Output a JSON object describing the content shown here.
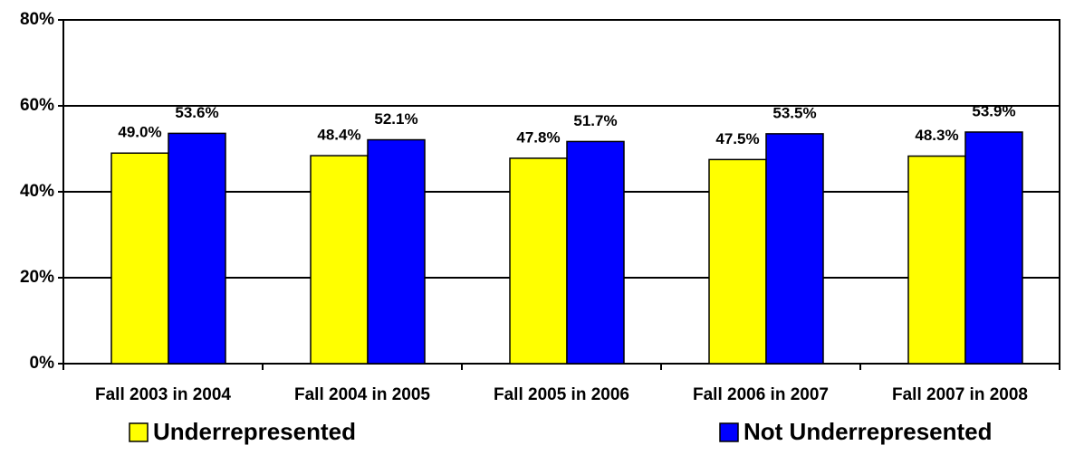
{
  "chart_data": {
    "type": "bar",
    "categories": [
      "Fall 2003 in 2004",
      "Fall 2004 in 2005",
      "Fall 2005 in 2006",
      "Fall 2006 in 2007",
      "Fall 2007 in 2008"
    ],
    "series": [
      {
        "name": "Underrepresented",
        "color": "#ffff00",
        "values": [
          49.0,
          48.4,
          47.8,
          47.5,
          48.3
        ],
        "value_labels": [
          "49.0%",
          "48.4%",
          "47.8%",
          "47.5%",
          "48.3%"
        ]
      },
      {
        "name": "Not Underrepresented",
        "color": "#0000ff",
        "values": [
          53.6,
          52.1,
          51.7,
          53.5,
          53.9
        ],
        "value_labels": [
          "53.6%",
          "52.1%",
          "51.7%",
          "53.5%",
          "53.9%"
        ]
      }
    ],
    "ylim": [
      0,
      80
    ],
    "yticks": [
      {
        "value": 0,
        "label": "0%"
      },
      {
        "value": 20,
        "label": "20%"
      },
      {
        "value": 40,
        "label": "40%"
      },
      {
        "value": 60,
        "label": "60%"
      },
      {
        "value": 80,
        "label": "80%"
      }
    ],
    "grid": true,
    "legend": "bottom"
  }
}
